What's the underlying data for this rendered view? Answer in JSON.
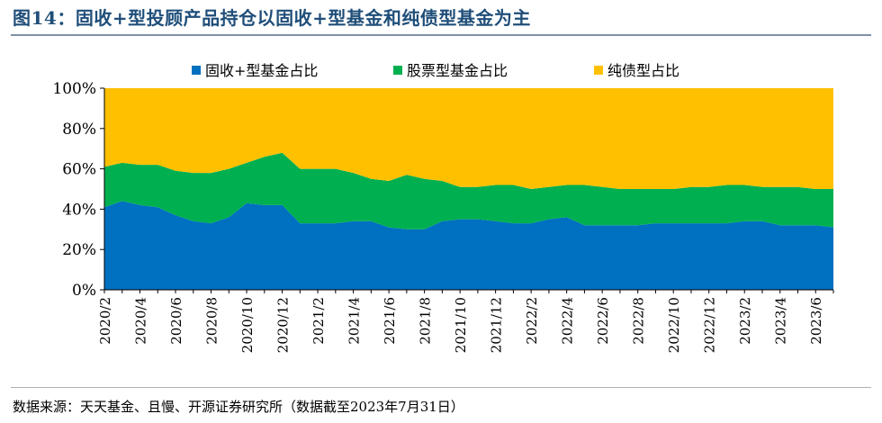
{
  "title": "图14：固收+型投顾产品持仓以固收+型基金和纯债型基金为主",
  "source": "数据来源：天天基金、且慢、开源证券研究所（数据截至2023年7月31日）",
  "colors": {
    "title": "#1f4e79",
    "series": [
      "#0070c0",
      "#00b050",
      "#ffc000"
    ]
  },
  "chart_data": {
    "type": "area",
    "stacked": true,
    "ylim": [
      0,
      100
    ],
    "yticks": [
      "0%",
      "20%",
      "40%",
      "60%",
      "80%",
      "100%"
    ],
    "legend_position": "top",
    "grid": false,
    "x": [
      "2020/2",
      "2020/3",
      "2020/4",
      "2020/5",
      "2020/6",
      "2020/7",
      "2020/8",
      "2020/9",
      "2020/10",
      "2020/11",
      "2020/12",
      "2021/1",
      "2021/2",
      "2021/3",
      "2021/4",
      "2021/5",
      "2021/6",
      "2021/7",
      "2021/8",
      "2021/9",
      "2021/10",
      "2021/11",
      "2021/12",
      "2022/1",
      "2022/2",
      "2022/3",
      "2022/4",
      "2022/5",
      "2022/6",
      "2022/7",
      "2022/8",
      "2022/9",
      "2022/10",
      "2022/11",
      "2022/12",
      "2023/1",
      "2023/2",
      "2023/3",
      "2023/4",
      "2023/5",
      "2023/6",
      "2023/7"
    ],
    "x_tick_labels": [
      "2020/2",
      "2020/4",
      "2020/6",
      "2020/8",
      "2020/10",
      "2020/12",
      "2021/2",
      "2021/4",
      "2021/6",
      "2021/8",
      "2021/10",
      "2021/12",
      "2022/2",
      "2022/4",
      "2022/6",
      "2022/8",
      "2022/10",
      "2022/12",
      "2023/2",
      "2023/4",
      "2023/6"
    ],
    "series": [
      {
        "name": "固收+型基金占比",
        "values": [
          41,
          44,
          42,
          41,
          37,
          34,
          33,
          36,
          43,
          42,
          42,
          33,
          33,
          33,
          34,
          34,
          31,
          30,
          30,
          34,
          35,
          35,
          34,
          33,
          33,
          35,
          36,
          32,
          32,
          32,
          32,
          33,
          33,
          33,
          33,
          33,
          34,
          34,
          32,
          32,
          32,
          31
        ]
      },
      {
        "name": "股票型基金占比",
        "values": [
          20,
          19,
          20,
          21,
          22,
          24,
          25,
          24,
          20,
          24,
          26,
          27,
          27,
          27,
          24,
          21,
          23,
          27,
          25,
          20,
          16,
          16,
          18,
          19,
          17,
          16,
          16,
          20,
          19,
          18,
          18,
          17,
          17,
          18,
          18,
          19,
          18,
          17,
          19,
          19,
          18,
          19
        ]
      },
      {
        "name": "纯债型占比",
        "values": [
          39,
          37,
          38,
          38,
          41,
          42,
          42,
          40,
          37,
          34,
          32,
          40,
          40,
          40,
          42,
          45,
          46,
          43,
          45,
          46,
          49,
          49,
          48,
          48,
          50,
          49,
          48,
          48,
          49,
          50,
          50,
          50,
          50,
          49,
          49,
          48,
          48,
          49,
          49,
          49,
          50,
          50
        ]
      }
    ]
  }
}
